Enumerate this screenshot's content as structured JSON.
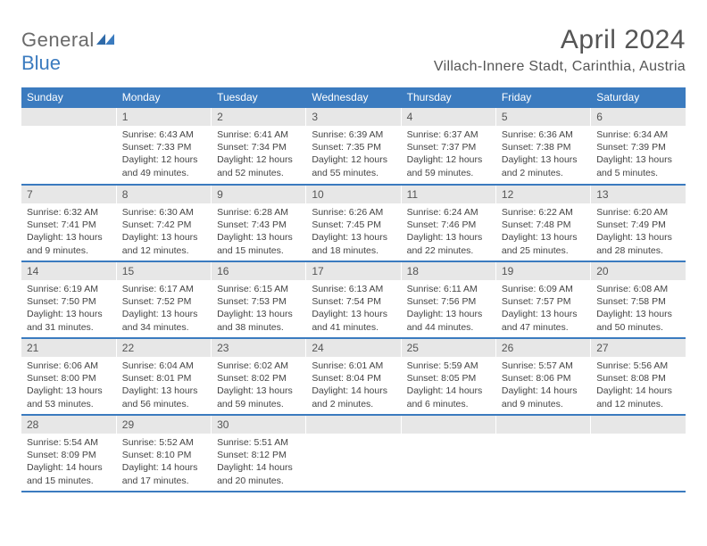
{
  "logo": {
    "text1": "General",
    "text2": "Blue"
  },
  "header": {
    "title": "April 2024",
    "location": "Villach-Innere Stadt, Carinthia, Austria"
  },
  "dow": [
    "Sunday",
    "Monday",
    "Tuesday",
    "Wednesday",
    "Thursday",
    "Friday",
    "Saturday"
  ],
  "colors": {
    "accent": "#3b7bbf",
    "daynum_bg": "#e7e7e7",
    "text": "#555555"
  },
  "weeks": [
    [
      {
        "num": "",
        "sunrise": "",
        "sunset": "",
        "daylight1": "",
        "daylight2": ""
      },
      {
        "num": "1",
        "sunrise": "Sunrise: 6:43 AM",
        "sunset": "Sunset: 7:33 PM",
        "daylight1": "Daylight: 12 hours",
        "daylight2": "and 49 minutes."
      },
      {
        "num": "2",
        "sunrise": "Sunrise: 6:41 AM",
        "sunset": "Sunset: 7:34 PM",
        "daylight1": "Daylight: 12 hours",
        "daylight2": "and 52 minutes."
      },
      {
        "num": "3",
        "sunrise": "Sunrise: 6:39 AM",
        "sunset": "Sunset: 7:35 PM",
        "daylight1": "Daylight: 12 hours",
        "daylight2": "and 55 minutes."
      },
      {
        "num": "4",
        "sunrise": "Sunrise: 6:37 AM",
        "sunset": "Sunset: 7:37 PM",
        "daylight1": "Daylight: 12 hours",
        "daylight2": "and 59 minutes."
      },
      {
        "num": "5",
        "sunrise": "Sunrise: 6:36 AM",
        "sunset": "Sunset: 7:38 PM",
        "daylight1": "Daylight: 13 hours",
        "daylight2": "and 2 minutes."
      },
      {
        "num": "6",
        "sunrise": "Sunrise: 6:34 AM",
        "sunset": "Sunset: 7:39 PM",
        "daylight1": "Daylight: 13 hours",
        "daylight2": "and 5 minutes."
      }
    ],
    [
      {
        "num": "7",
        "sunrise": "Sunrise: 6:32 AM",
        "sunset": "Sunset: 7:41 PM",
        "daylight1": "Daylight: 13 hours",
        "daylight2": "and 9 minutes."
      },
      {
        "num": "8",
        "sunrise": "Sunrise: 6:30 AM",
        "sunset": "Sunset: 7:42 PM",
        "daylight1": "Daylight: 13 hours",
        "daylight2": "and 12 minutes."
      },
      {
        "num": "9",
        "sunrise": "Sunrise: 6:28 AM",
        "sunset": "Sunset: 7:43 PM",
        "daylight1": "Daylight: 13 hours",
        "daylight2": "and 15 minutes."
      },
      {
        "num": "10",
        "sunrise": "Sunrise: 6:26 AM",
        "sunset": "Sunset: 7:45 PM",
        "daylight1": "Daylight: 13 hours",
        "daylight2": "and 18 minutes."
      },
      {
        "num": "11",
        "sunrise": "Sunrise: 6:24 AM",
        "sunset": "Sunset: 7:46 PM",
        "daylight1": "Daylight: 13 hours",
        "daylight2": "and 22 minutes."
      },
      {
        "num": "12",
        "sunrise": "Sunrise: 6:22 AM",
        "sunset": "Sunset: 7:48 PM",
        "daylight1": "Daylight: 13 hours",
        "daylight2": "and 25 minutes."
      },
      {
        "num": "13",
        "sunrise": "Sunrise: 6:20 AM",
        "sunset": "Sunset: 7:49 PM",
        "daylight1": "Daylight: 13 hours",
        "daylight2": "and 28 minutes."
      }
    ],
    [
      {
        "num": "14",
        "sunrise": "Sunrise: 6:19 AM",
        "sunset": "Sunset: 7:50 PM",
        "daylight1": "Daylight: 13 hours",
        "daylight2": "and 31 minutes."
      },
      {
        "num": "15",
        "sunrise": "Sunrise: 6:17 AM",
        "sunset": "Sunset: 7:52 PM",
        "daylight1": "Daylight: 13 hours",
        "daylight2": "and 34 minutes."
      },
      {
        "num": "16",
        "sunrise": "Sunrise: 6:15 AM",
        "sunset": "Sunset: 7:53 PM",
        "daylight1": "Daylight: 13 hours",
        "daylight2": "and 38 minutes."
      },
      {
        "num": "17",
        "sunrise": "Sunrise: 6:13 AM",
        "sunset": "Sunset: 7:54 PM",
        "daylight1": "Daylight: 13 hours",
        "daylight2": "and 41 minutes."
      },
      {
        "num": "18",
        "sunrise": "Sunrise: 6:11 AM",
        "sunset": "Sunset: 7:56 PM",
        "daylight1": "Daylight: 13 hours",
        "daylight2": "and 44 minutes."
      },
      {
        "num": "19",
        "sunrise": "Sunrise: 6:09 AM",
        "sunset": "Sunset: 7:57 PM",
        "daylight1": "Daylight: 13 hours",
        "daylight2": "and 47 minutes."
      },
      {
        "num": "20",
        "sunrise": "Sunrise: 6:08 AM",
        "sunset": "Sunset: 7:58 PM",
        "daylight1": "Daylight: 13 hours",
        "daylight2": "and 50 minutes."
      }
    ],
    [
      {
        "num": "21",
        "sunrise": "Sunrise: 6:06 AM",
        "sunset": "Sunset: 8:00 PM",
        "daylight1": "Daylight: 13 hours",
        "daylight2": "and 53 minutes."
      },
      {
        "num": "22",
        "sunrise": "Sunrise: 6:04 AM",
        "sunset": "Sunset: 8:01 PM",
        "daylight1": "Daylight: 13 hours",
        "daylight2": "and 56 minutes."
      },
      {
        "num": "23",
        "sunrise": "Sunrise: 6:02 AM",
        "sunset": "Sunset: 8:02 PM",
        "daylight1": "Daylight: 13 hours",
        "daylight2": "and 59 minutes."
      },
      {
        "num": "24",
        "sunrise": "Sunrise: 6:01 AM",
        "sunset": "Sunset: 8:04 PM",
        "daylight1": "Daylight: 14 hours",
        "daylight2": "and 2 minutes."
      },
      {
        "num": "25",
        "sunrise": "Sunrise: 5:59 AM",
        "sunset": "Sunset: 8:05 PM",
        "daylight1": "Daylight: 14 hours",
        "daylight2": "and 6 minutes."
      },
      {
        "num": "26",
        "sunrise": "Sunrise: 5:57 AM",
        "sunset": "Sunset: 8:06 PM",
        "daylight1": "Daylight: 14 hours",
        "daylight2": "and 9 minutes."
      },
      {
        "num": "27",
        "sunrise": "Sunrise: 5:56 AM",
        "sunset": "Sunset: 8:08 PM",
        "daylight1": "Daylight: 14 hours",
        "daylight2": "and 12 minutes."
      }
    ],
    [
      {
        "num": "28",
        "sunrise": "Sunrise: 5:54 AM",
        "sunset": "Sunset: 8:09 PM",
        "daylight1": "Daylight: 14 hours",
        "daylight2": "and 15 minutes."
      },
      {
        "num": "29",
        "sunrise": "Sunrise: 5:52 AM",
        "sunset": "Sunset: 8:10 PM",
        "daylight1": "Daylight: 14 hours",
        "daylight2": "and 17 minutes."
      },
      {
        "num": "30",
        "sunrise": "Sunrise: 5:51 AM",
        "sunset": "Sunset: 8:12 PM",
        "daylight1": "Daylight: 14 hours",
        "daylight2": "and 20 minutes."
      },
      {
        "num": "",
        "sunrise": "",
        "sunset": "",
        "daylight1": "",
        "daylight2": ""
      },
      {
        "num": "",
        "sunrise": "",
        "sunset": "",
        "daylight1": "",
        "daylight2": ""
      },
      {
        "num": "",
        "sunrise": "",
        "sunset": "",
        "daylight1": "",
        "daylight2": ""
      },
      {
        "num": "",
        "sunrise": "",
        "sunset": "",
        "daylight1": "",
        "daylight2": ""
      }
    ]
  ]
}
